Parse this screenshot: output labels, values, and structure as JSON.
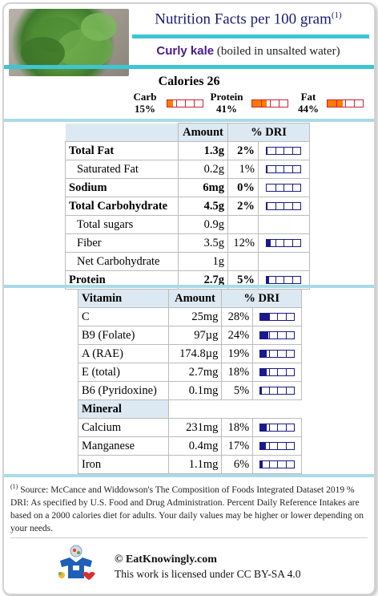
{
  "header": {
    "title": "Nutrition Facts per 100 gram",
    "title_sup": "(1)",
    "food_name": "Curly kale",
    "food_detail": "(boiled in unsalted water)",
    "photo_icon": "kale-photo"
  },
  "calories": "Calories 26",
  "macros": [
    {
      "label": "Carb",
      "value": "15%",
      "fill": 0.15
    },
    {
      "label": "Protein",
      "value": "41%",
      "fill": 0.41
    },
    {
      "label": "Fat",
      "value": "44%",
      "fill": 0.44
    }
  ],
  "main_table": {
    "headers": [
      "",
      "Amount",
      "% DRI"
    ],
    "rows": [
      {
        "name": "Total Fat",
        "amount": "1.3g",
        "dri": "2%",
        "fill": 0.02,
        "bold": true,
        "indent": false
      },
      {
        "name": "Saturated Fat",
        "amount": "0.2g",
        "dri": "1%",
        "fill": 0.01,
        "bold": false,
        "indent": true
      },
      {
        "name": "Sodium",
        "amount": "6mg",
        "dri": "0%",
        "fill": 0.0,
        "bold": true,
        "indent": false
      },
      {
        "name": "Total Carbohydrate",
        "amount": "4.5g",
        "dri": "2%",
        "fill": 0.02,
        "bold": true,
        "indent": false
      },
      {
        "name": "Total sugars",
        "amount": "0.9g",
        "dri": "",
        "fill": null,
        "bold": false,
        "indent": true
      },
      {
        "name": "Fiber",
        "amount": "3.5g",
        "dri": "12%",
        "fill": 0.12,
        "bold": false,
        "indent": true
      },
      {
        "name": "Net Carbohydrate",
        "amount": "1g",
        "dri": "",
        "fill": null,
        "bold": false,
        "indent": true
      },
      {
        "name": "Protein",
        "amount": "2.7g",
        "dri": "5%",
        "fill": 0.05,
        "bold": true,
        "indent": false
      }
    ]
  },
  "vitamin_table": {
    "headers": [
      "Vitamin",
      "Amount",
      "% DRI"
    ],
    "rows": [
      {
        "name": "C",
        "amount": "25mg",
        "dri": "28%",
        "fill": 0.28
      },
      {
        "name": "B9 (Folate)",
        "amount": "97µg",
        "dri": "24%",
        "fill": 0.24
      },
      {
        "name": "A (RAE)",
        "amount": "174.8µg",
        "dri": "19%",
        "fill": 0.19
      },
      {
        "name": "E (total)",
        "amount": "2.7mg",
        "dri": "18%",
        "fill": 0.18
      },
      {
        "name": "B6 (Pyridoxine)",
        "amount": "0.1mg",
        "dri": "5%",
        "fill": 0.05
      }
    ],
    "mineral_header": "Mineral",
    "minerals": [
      {
        "name": "Calcium",
        "amount": "231mg",
        "dri": "18%",
        "fill": 0.18
      },
      {
        "name": "Manganese",
        "amount": "0.4mg",
        "dri": "17%",
        "fill": 0.17
      },
      {
        "name": "Iron",
        "amount": "1.1mg",
        "dri": "6%",
        "fill": 0.06
      }
    ]
  },
  "footnote": {
    "sup": "(1)",
    "text": " Source: McCance and Widdowson's The Composition of Foods Integrated Dataset 2019 % DRI: As specified by U.S. Food and Drug Administration. Percent Daily Reference Intakes are based on a 2000 calories diet for adults. Your daily values may be higher or lower depending on your needs."
  },
  "credit": {
    "site": "© EatKnowingly.com",
    "license": "This work is licensed under CC BY-SA 4.0",
    "logo_icon": "eatknowingly-logo-icon"
  },
  "colors": {
    "accent": "#3cc6d4",
    "title": "#1a1a6e",
    "food_name": "#4a1a8c",
    "macro_bar": "#ff7b00",
    "dri_bar": "#1a1a8c"
  }
}
